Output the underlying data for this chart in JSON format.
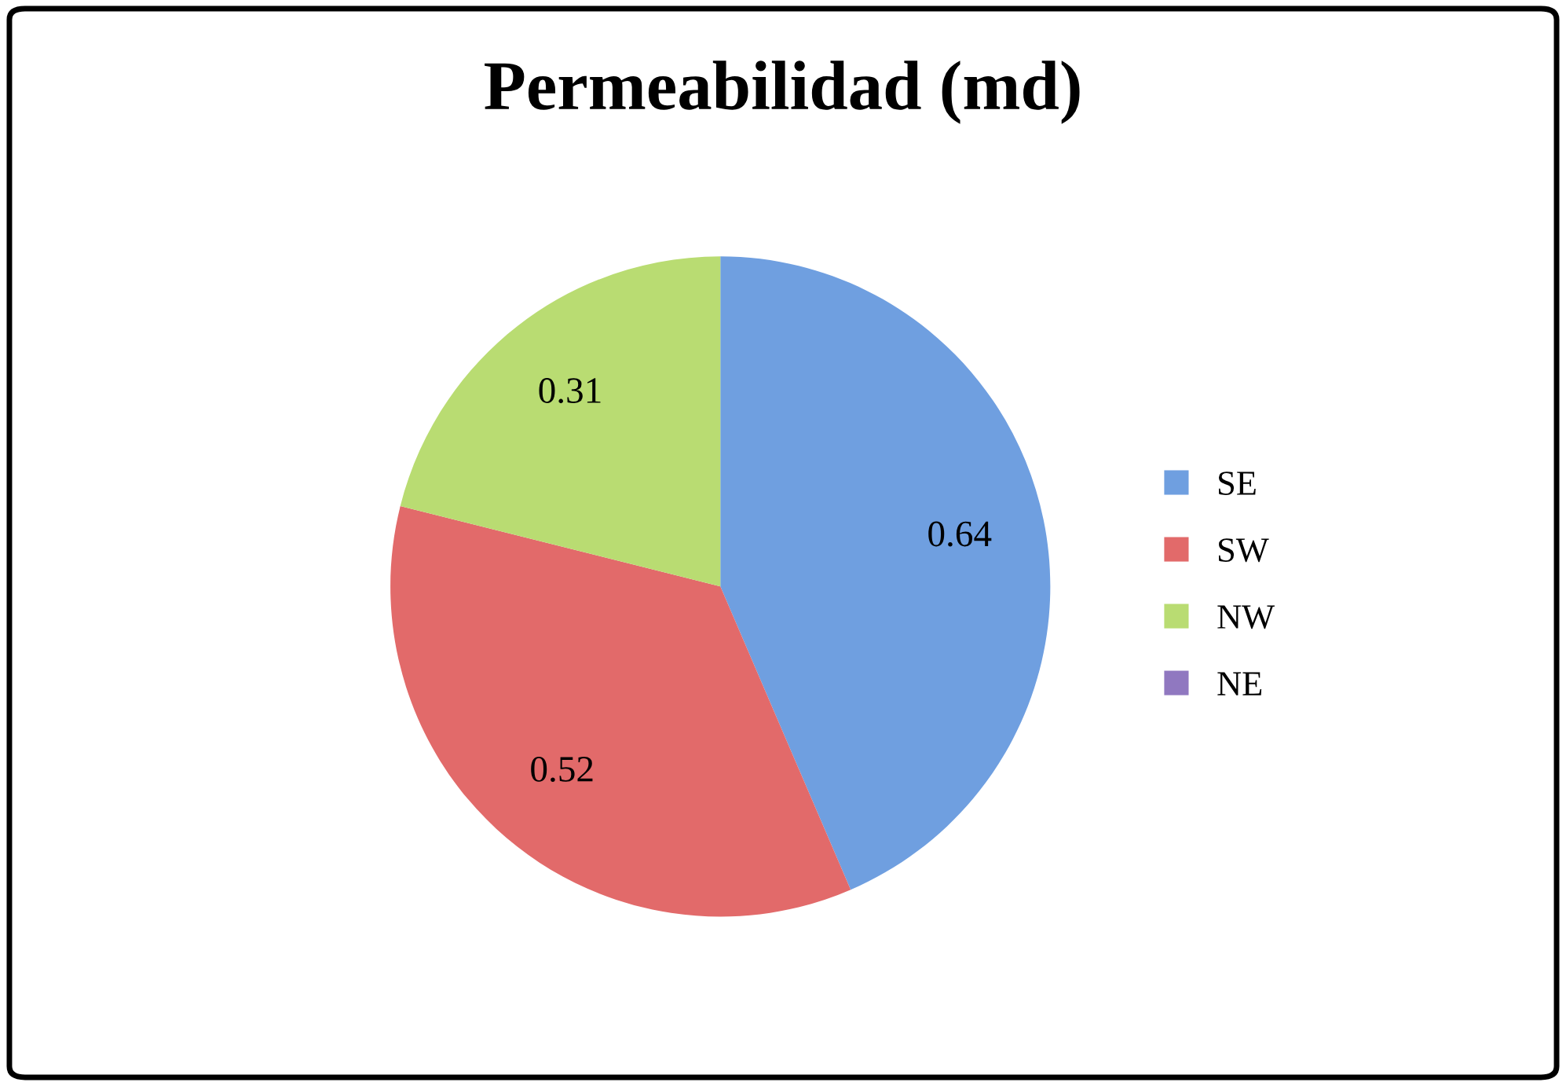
{
  "chart_data": {
    "type": "pie",
    "title": "Permeabilidad (md)",
    "categories": [
      "SE",
      "SW",
      "NW",
      "NE"
    ],
    "values": [
      0.64,
      0.52,
      0.31,
      null
    ],
    "value_labels": [
      "0.64",
      "0.52",
      "0.31",
      null
    ],
    "colors": [
      "#6f9fe0",
      "#e26a6a",
      "#b9dc72",
      "#9078c0"
    ],
    "legend": "right"
  }
}
